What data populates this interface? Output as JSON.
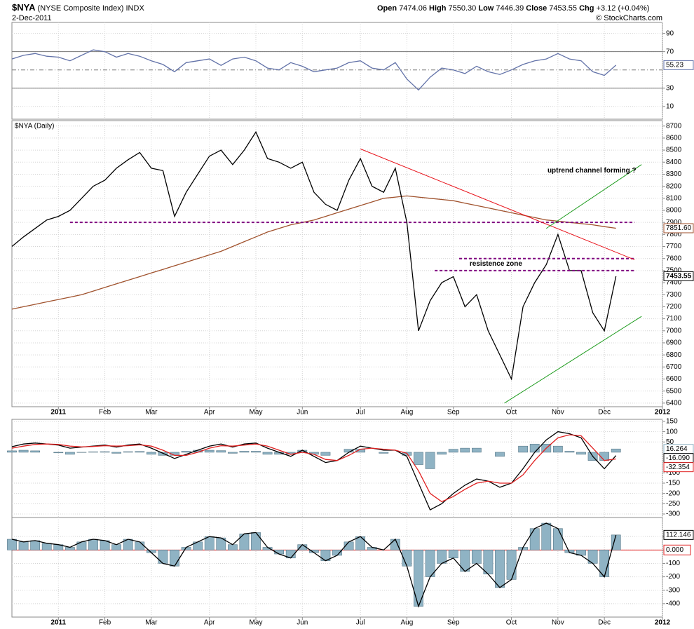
{
  "header": {
    "symbol": "$NYA",
    "name": "(NYSE Composite Index)",
    "exchange": "INDX",
    "date": "2-Dec-2011",
    "credit": "© StockCharts.com",
    "quote": [
      {
        "label": "Open",
        "value": "7474.06"
      },
      {
        "label": "High",
        "value": "7550.30"
      },
      {
        "label": "Low",
        "value": "7446.39"
      },
      {
        "label": "Close",
        "value": "7453.55"
      },
      {
        "label": "Chg",
        "value": "+3.12 (+0.04%)"
      }
    ]
  },
  "chart_data": [
    {
      "type": "line",
      "ylim": [
        -4,
        102
      ],
      "yticks": [
        90,
        70,
        30,
        10
      ],
      "grid": true,
      "reference_lines": [
        {
          "value": 70,
          "style": "solid"
        },
        {
          "value": 50,
          "style": "dashdot"
        },
        {
          "value": 30,
          "style": "solid"
        }
      ],
      "series": [
        {
          "color": "#6272a8",
          "tag": true,
          "values": [
            62,
            66,
            68,
            65,
            64,
            60,
            66,
            72,
            70,
            64,
            68,
            65,
            60,
            56,
            48,
            58,
            60,
            62,
            55,
            62,
            64,
            60,
            52,
            50,
            58,
            54,
            48,
            50,
            52,
            58,
            60,
            52,
            50,
            58,
            40,
            28,
            42,
            52,
            50,
            46,
            54,
            48,
            45,
            50,
            56,
            60,
            62,
            68,
            62,
            60,
            48,
            44,
            55.23,
            null,
            null,
            null,
            null
          ]
        }
      ]
    },
    {
      "type": "line",
      "title": "$NYA (Daily)",
      "categories": [
        null,
        null,
        null,
        null,
        "2011",
        null,
        null,
        null,
        "Feb",
        null,
        null,
        null,
        "Mar",
        null,
        null,
        null,
        null,
        "Apr",
        null,
        null,
        null,
        "May",
        null,
        null,
        null,
        "Jun",
        null,
        null,
        null,
        null,
        "Jul",
        null,
        null,
        null,
        "Aug",
        null,
        null,
        null,
        "Sep",
        null,
        null,
        null,
        null,
        "Oct",
        null,
        null,
        null,
        "Nov",
        null,
        null,
        null,
        "Dec",
        null,
        null,
        null,
        null,
        "2012"
      ],
      "ylim": [
        6370,
        8745
      ],
      "yticks": [
        6400,
        6500,
        6600,
        6700,
        6800,
        6900,
        7000,
        7100,
        7200,
        7300,
        7400,
        7500,
        7600,
        7700,
        7800,
        7900,
        8000,
        8100,
        8200,
        8300,
        8400,
        8500,
        8600,
        8700
      ],
      "grid": true,
      "series": [
        {
          "color": "#a0522d",
          "tag": true,
          "end_label": "7851.60",
          "values": [
            7180,
            7200,
            7220,
            7240,
            7260,
            7280,
            7300,
            7330,
            7360,
            7390,
            7420,
            7450,
            7480,
            7510,
            7540,
            7570,
            7600,
            7630,
            7660,
            7700,
            7740,
            7780,
            7820,
            7850,
            7880,
            7900,
            7920,
            7950,
            7980,
            8010,
            8040,
            8070,
            8100,
            8110,
            8120,
            8110,
            8100,
            8090,
            8080,
            8060,
            8040,
            8020,
            8000,
            7980,
            7960,
            7940,
            7920,
            7910,
            7900,
            7890,
            7880,
            7865,
            7851.6,
            null,
            null,
            null,
            null
          ]
        },
        {
          "color": "#000000",
          "tag": true,
          "tag_bold": true,
          "values": [
            7700,
            7780,
            7850,
            7920,
            7950,
            8000,
            8100,
            8200,
            8250,
            8350,
            8420,
            8480,
            8350,
            8330,
            7950,
            8150,
            8300,
            8450,
            8500,
            8380,
            8500,
            8650,
            8430,
            8400,
            8350,
            8400,
            8150,
            8050,
            8000,
            8250,
            8430,
            8200,
            8150,
            8350,
            7900,
            7000,
            7250,
            7400,
            7450,
            7200,
            7300,
            7000,
            6800,
            6600,
            7200,
            7400,
            7550,
            7800,
            7500,
            7500,
            7150,
            7000,
            7453.55,
            null,
            null,
            null,
            null
          ]
        }
      ],
      "hlines": [
        {
          "value": 7900,
          "from": 5,
          "to": 53.6,
          "color": "#800080"
        },
        {
          "value": 7600,
          "from": 38.5,
          "to": 53.6,
          "color": "#800080"
        },
        {
          "value": 7500,
          "from": 36.4,
          "to": 53.6,
          "color": "#800080"
        }
      ],
      "trendlines": [
        {
          "color": "#e8141c",
          "x": [
            30,
            53.6
          ],
          "y": [
            8510,
            7590
          ]
        },
        {
          "color": "#1a9a1a",
          "x": [
            46,
            54.2
          ],
          "y": [
            7850,
            8380
          ]
        },
        {
          "color": "#1a9a1a",
          "x": [
            42.4,
            54.2
          ],
          "y": [
            6400,
            7120
          ]
        }
      ],
      "annotations": [
        {
          "text": "resistence zone",
          "color": "#800080"
        },
        {
          "text": "uptrend channel forming ?",
          "color": "#1a8a1a"
        }
      ]
    },
    {
      "type": "macd",
      "ylim": [
        -317,
        160
      ],
      "yticks": [
        150,
        100,
        50,
        -100,
        -150,
        -200,
        -250,
        -300
      ],
      "grid": true,
      "series": [
        {
          "style": "bars",
          "color": "#8fb3c4",
          "tag": true,
          "values": [
            7,
            10,
            7,
            0,
            -3,
            -10,
            -1,
            2,
            3,
            -5,
            3,
            4,
            -10,
            -15,
            -15,
            5,
            10,
            10,
            8,
            -5,
            5,
            5,
            -10,
            -10,
            -10,
            10,
            -10,
            -15,
            0,
            15,
            15,
            0,
            -5,
            0,
            -15,
            -60,
            -80,
            -10,
            15,
            20,
            20,
            0,
            -20,
            0,
            30,
            40,
            40,
            30,
            5,
            -10,
            -40,
            -40,
            16.264,
            null,
            null,
            null,
            null
          ]
        },
        {
          "color": "#000000",
          "tag": true,
          "end_label": "-16.090",
          "values": [
            27,
            40,
            45,
            40,
            35,
            20,
            25,
            30,
            35,
            25,
            35,
            40,
            20,
            -5,
            -30,
            -10,
            10,
            30,
            40,
            25,
            40,
            45,
            20,
            0,
            -20,
            10,
            -20,
            -50,
            -40,
            0,
            30,
            20,
            10,
            10,
            -20,
            -150,
            -280,
            -250,
            -200,
            -160,
            -130,
            -140,
            -170,
            -150,
            -80,
            0,
            60,
            100,
            90,
            70,
            -20,
            -80,
            -16.09,
            null,
            null,
            null,
            null
          ]
        },
        {
          "color": "#e02020",
          "tag": true,
          "values": [
            20,
            30,
            38,
            40,
            38,
            30,
            26,
            28,
            32,
            30,
            32,
            36,
            30,
            10,
            -15,
            -15,
            0,
            20,
            32,
            30,
            35,
            40,
            30,
            10,
            -10,
            0,
            -10,
            -35,
            -40,
            -15,
            15,
            20,
            15,
            10,
            -5,
            -90,
            -200,
            -240,
            -215,
            -180,
            -150,
            -140,
            -150,
            -150,
            -110,
            -40,
            20,
            70,
            85,
            80,
            20,
            -40,
            -32.354,
            null,
            null,
            null,
            null
          ]
        }
      ]
    },
    {
      "type": "histogram",
      "ylim": [
        -500,
        242
      ],
      "yticks": [
        100,
        {
          "value": 0,
          "label": "0.000"
        },
        -100,
        -200,
        -300,
        -400
      ],
      "grid": true,
      "zero_line": "#e02020",
      "series": [
        {
          "style": "bars+line",
          "color": "#8fb3c4",
          "line_color": "#000000",
          "tag": true,
          "values": [
            80,
            60,
            70,
            50,
            40,
            20,
            60,
            80,
            70,
            40,
            80,
            60,
            -20,
            -100,
            -120,
            20,
            60,
            100,
            90,
            40,
            120,
            130,
            20,
            -30,
            -60,
            40,
            -20,
            -80,
            -40,
            60,
            100,
            20,
            0,
            80,
            -120,
            -420,
            -200,
            -100,
            -60,
            -160,
            -100,
            -180,
            -280,
            -220,
            20,
            160,
            200,
            160,
            -20,
            -40,
            -100,
            -200,
            112.146,
            null,
            null,
            null,
            null
          ]
        }
      ]
    }
  ]
}
